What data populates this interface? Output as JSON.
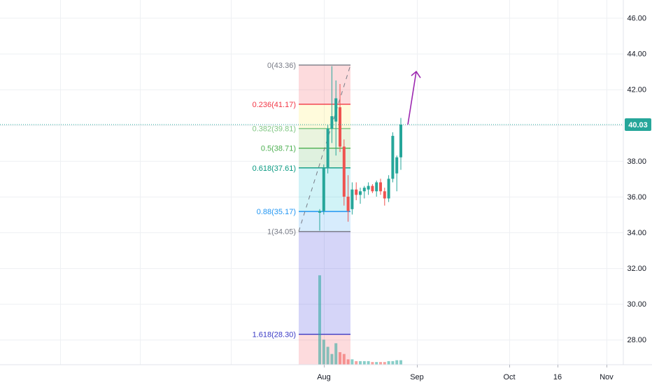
{
  "chart_data": {
    "type": "candlestick",
    "title": "",
    "xlabel": "",
    "ylabel": "",
    "ylim": [
      26.6,
      47.0
    ],
    "y_ticks": [
      "46.00",
      "44.00",
      "42.00",
      "40.00",
      "38.00",
      "36.00",
      "34.00",
      "32.00",
      "30.00",
      "28.00"
    ],
    "x_ticks": [
      "Aug",
      "Sep",
      "Oct",
      "16",
      "Nov"
    ],
    "grid": true,
    "last_price": {
      "label": "40.03",
      "value": 40.03,
      "color": "#26a69a"
    },
    "candles": [
      {
        "o": 35.1,
        "h": 35.3,
        "l": 34.1,
        "c": 35.2
      },
      {
        "o": 35.2,
        "h": 37.8,
        "l": 35.0,
        "c": 37.6
      },
      {
        "o": 37.6,
        "h": 40.0,
        "l": 37.3,
        "c": 39.8
      },
      {
        "o": 39.8,
        "h": 43.3,
        "l": 39.0,
        "c": 40.5
      },
      {
        "o": 40.2,
        "h": 42.5,
        "l": 38.3,
        "c": 41.5
      },
      {
        "o": 41.0,
        "h": 42.3,
        "l": 38.5,
        "c": 38.8
      },
      {
        "o": 38.8,
        "h": 39.2,
        "l": 35.5,
        "c": 36.0
      },
      {
        "o": 36.0,
        "h": 37.2,
        "l": 34.6,
        "c": 35.2
      },
      {
        "o": 35.3,
        "h": 36.8,
        "l": 35.0,
        "c": 36.4
      },
      {
        "o": 36.4,
        "h": 36.8,
        "l": 35.8,
        "c": 36.1
      },
      {
        "o": 36.1,
        "h": 36.5,
        "l": 35.6,
        "c": 36.3
      },
      {
        "o": 36.3,
        "h": 36.6,
        "l": 35.9,
        "c": 36.5
      },
      {
        "o": 36.4,
        "h": 36.8,
        "l": 36.1,
        "c": 36.6
      },
      {
        "o": 36.6,
        "h": 36.7,
        "l": 36.2,
        "c": 36.3
      },
      {
        "o": 36.3,
        "h": 36.9,
        "l": 36.0,
        "c": 36.8
      },
      {
        "o": 36.8,
        "h": 37.0,
        "l": 36.1,
        "c": 36.3
      },
      {
        "o": 36.3,
        "h": 36.5,
        "l": 35.5,
        "c": 35.9
      },
      {
        "o": 35.9,
        "h": 37.2,
        "l": 35.7,
        "c": 37.0
      },
      {
        "o": 37.0,
        "h": 39.6,
        "l": 36.8,
        "c": 39.4
      },
      {
        "o": 37.3,
        "h": 38.3,
        "l": 36.3,
        "c": 38.2
      },
      {
        "o": 38.2,
        "h": 40.4,
        "l": 37.5,
        "c": 40.03
      }
    ],
    "volume": [
      31.6,
      28.0,
      27.6,
      27.2,
      27.8,
      27.3,
      27.2,
      26.9,
      26.9,
      26.8,
      26.8,
      26.8,
      26.8,
      26.75,
      26.75,
      26.75,
      26.75,
      26.8,
      26.8,
      26.85,
      26.85
    ],
    "fib": {
      "from": 34.05,
      "to": 43.36,
      "levels": [
        {
          "label": "0(43.36)",
          "value": 43.36,
          "color": "#787b86"
        },
        {
          "label": "0.236(41.17)",
          "value": 41.17,
          "color": "#f23645"
        },
        {
          "label": "0.382(39.81)",
          "value": 39.81,
          "color": "#81c784"
        },
        {
          "label": "0.5(38.71)",
          "value": 38.71,
          "color": "#4caf50"
        },
        {
          "label": "0.618(37.61)",
          "value": 37.61,
          "color": "#089981"
        },
        {
          "label": "0.88(35.17)",
          "value": 35.17,
          "color": "#2196f3"
        },
        {
          "label": "1(34.05)",
          "value": 34.05,
          "color": "#787b86"
        },
        {
          "label": "1.618(28.30)",
          "value": 28.3,
          "color": "#3939c5"
        }
      ]
    },
    "annotation_arrow": {
      "from": 40.03,
      "to": 43.0,
      "color": "#9c27b0"
    },
    "colors": {
      "up": "#26a69a",
      "down": "#ef5350",
      "grid": "#eef0f3",
      "axis_text": "#131722"
    }
  }
}
